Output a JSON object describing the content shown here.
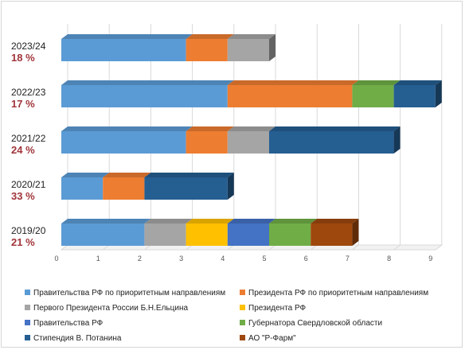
{
  "chart_data": {
    "type": "bar",
    "orientation": "horizontal",
    "stacked": true,
    "style": "3d",
    "categories": [
      "2023/24",
      "2022/23",
      "2021/22",
      "2020/21",
      "2019/20"
    ],
    "category_percent_labels": [
      "18 %",
      "17 %",
      "24 %",
      "33 %",
      "21 %"
    ],
    "series": [
      {
        "name": "Правительства РФ по приоритетным направлениям",
        "color": "#5b9bd5",
        "values": [
          3,
          4,
          3,
          1,
          2
        ]
      },
      {
        "name": "Президента РФ по приоритетным направлениям",
        "color": "#ed7d31",
        "values": [
          1,
          3,
          1,
          1,
          0
        ]
      },
      {
        "name": "Первого Президента России Б.Н.Ельцина",
        "color": "#a5a5a5",
        "values": [
          1,
          0,
          1,
          0,
          1
        ]
      },
      {
        "name": "Президента РФ",
        "color": "#ffc000",
        "values": [
          0,
          0,
          0,
          0,
          1
        ]
      },
      {
        "name": "Правительства РФ",
        "color": "#4472c4",
        "values": [
          0,
          0,
          0,
          0,
          1
        ]
      },
      {
        "name": "Губернатора Свердловской области",
        "color": "#70ad47",
        "values": [
          0,
          1,
          0,
          0,
          1
        ]
      },
      {
        "name": "Стипендия В. Потанина",
        "color": "#255e91",
        "values": [
          0,
          1,
          3,
          2,
          0
        ]
      },
      {
        "name": "АО \"Р-Фарм\"",
        "color": "#9e480e",
        "values": [
          0,
          0,
          0,
          0,
          1
        ]
      }
    ],
    "xlim": [
      0,
      9
    ],
    "xticks": [
      "0",
      "1",
      "2",
      "3",
      "4",
      "5",
      "6",
      "7",
      "8",
      "9"
    ],
    "grid": true,
    "legend_position": "bottom",
    "title": "",
    "xlabel": "",
    "ylabel": ""
  }
}
